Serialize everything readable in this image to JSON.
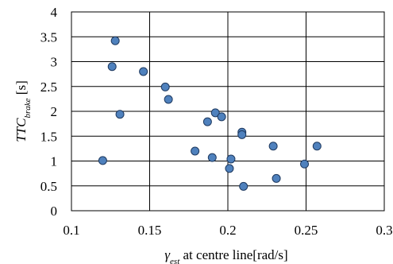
{
  "chart_data": {
    "type": "scatter",
    "title": "",
    "xlabel": {
      "parts": [
        {
          "text": "γ",
          "style": "italic"
        },
        {
          "text": "est",
          "style": "italic-sub"
        },
        {
          "text": " at centre line[rad/s]",
          "style": "normal"
        }
      ]
    },
    "ylabel": {
      "parts": [
        {
          "text": "TTC",
          "style": "italic"
        },
        {
          "text": "brake",
          "style": "italic-sub"
        },
        {
          "text": " [s]",
          "style": "normal"
        }
      ]
    },
    "xlim": [
      0.1,
      0.3
    ],
    "ylim": [
      0,
      4
    ],
    "xticks": [
      0.1,
      0.15,
      0.2,
      0.25,
      0.3
    ],
    "xtick_labels": [
      "0.1",
      "0.15",
      "0.2",
      "0.25",
      "0.3"
    ],
    "yticks": [
      0,
      0.5,
      1,
      1.5,
      2,
      2.5,
      3,
      3.5,
      4
    ],
    "ytick_labels": [
      "0",
      "0.5",
      "1",
      "1.5",
      "2",
      "2.5",
      "3",
      "3.5",
      "4"
    ],
    "grid": {
      "horizontal": true,
      "vertical": true
    },
    "legend": null,
    "marker_color": "#4f81bd",
    "marker_edge_color": "#1f3a60",
    "points": [
      {
        "x": 0.128,
        "y": 3.42
      },
      {
        "x": 0.126,
        "y": 2.9
      },
      {
        "x": 0.146,
        "y": 2.8
      },
      {
        "x": 0.16,
        "y": 2.49
      },
      {
        "x": 0.162,
        "y": 2.24
      },
      {
        "x": 0.131,
        "y": 1.94
      },
      {
        "x": 0.192,
        "y": 1.97
      },
      {
        "x": 0.196,
        "y": 1.89
      },
      {
        "x": 0.187,
        "y": 1.79
      },
      {
        "x": 0.209,
        "y": 1.58
      },
      {
        "x": 0.209,
        "y": 1.53
      },
      {
        "x": 0.229,
        "y": 1.3
      },
      {
        "x": 0.257,
        "y": 1.3
      },
      {
        "x": 0.179,
        "y": 1.2
      },
      {
        "x": 0.19,
        "y": 1.07
      },
      {
        "x": 0.202,
        "y": 1.04
      },
      {
        "x": 0.12,
        "y": 1.01
      },
      {
        "x": 0.249,
        "y": 0.94
      },
      {
        "x": 0.201,
        "y": 0.85
      },
      {
        "x": 0.231,
        "y": 0.65
      },
      {
        "x": 0.21,
        "y": 0.49
      }
    ]
  }
}
